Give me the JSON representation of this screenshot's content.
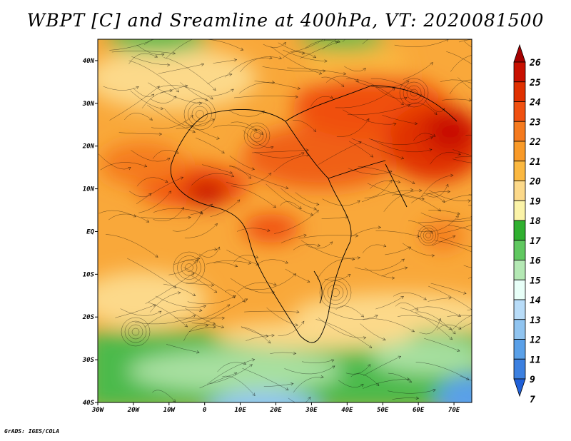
{
  "title": "WBPT [C] and Sreamline at 400hPa, VT: 2020081500",
  "credit": "GrADS: IGES/COLA",
  "map": {
    "lon_ticks": [
      "30W",
      "20W",
      "10W",
      "0",
      "10E",
      "20E",
      "30E",
      "40E",
      "50E",
      "60E",
      "70E"
    ],
    "lat_ticks": [
      "40N",
      "30N",
      "20N",
      "10N",
      "EQ",
      "10S",
      "20S",
      "30S",
      "40S"
    ],
    "lon_range": [
      -30,
      75
    ],
    "lat_range": [
      -40,
      45
    ]
  },
  "colorbar": {
    "labels": [
      "26",
      "25",
      "24",
      "23",
      "22",
      "21",
      "20",
      "19",
      "18",
      "17",
      "16",
      "15",
      "14",
      "13",
      "12",
      "11",
      "9",
      "7"
    ],
    "colors": [
      "#a50000",
      "#c81000",
      "#e03000",
      "#f05010",
      "#f57a1e",
      "#f99a28",
      "#fbb840",
      "#fcd98a",
      "#fbf3a8",
      "#30b030",
      "#60c860",
      "#b4e8b4",
      "#e8fff8",
      "#b8dcf8",
      "#90c4f0",
      "#5aa0e8",
      "#3c80e0",
      "#2060d8"
    ]
  }
}
